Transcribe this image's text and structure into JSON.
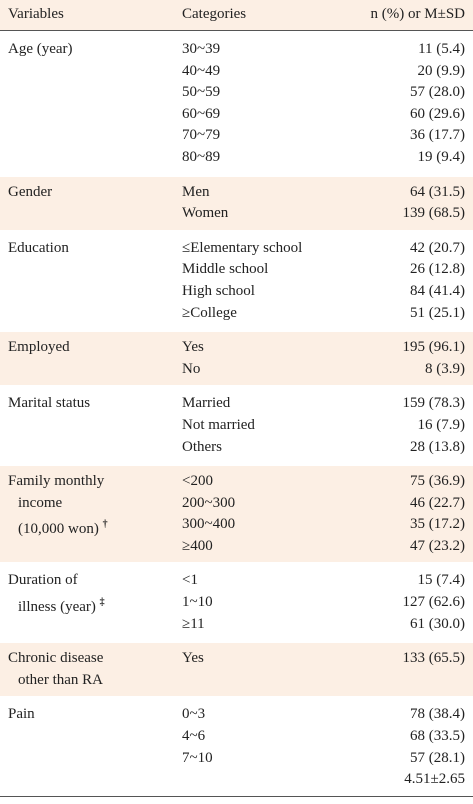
{
  "header": {
    "variables": "Variables",
    "categories": "Categories",
    "values": "n (%) or M±SD"
  },
  "groups": [
    {
      "variable": [
        "Age (year)"
      ],
      "categories": [
        "30~39",
        "40~49",
        "50~59",
        "60~69",
        "70~79",
        "80~89"
      ],
      "values": [
        "11 (5.4)",
        "20 (9.9)",
        "57 (28.0)",
        "60 (29.6)",
        "36 (17.7)",
        "19 (9.4)"
      ]
    },
    {
      "variable": [
        "Gender"
      ],
      "categories": [
        "Men",
        "Women"
      ],
      "values": [
        "64 (31.5)",
        "139 (68.5)"
      ]
    },
    {
      "variable": [
        "Education"
      ],
      "categories": [
        "≤Elementary school",
        "Middle school",
        "High school",
        "≥College"
      ],
      "values": [
        "42 (20.7)",
        "26 (12.8)",
        "84 (41.4)",
        "51 (25.1)"
      ]
    },
    {
      "variable": [
        "Employed"
      ],
      "categories": [
        "Yes",
        "No"
      ],
      "values": [
        "195 (96.1)",
        "8 (3.9)"
      ]
    },
    {
      "variable": [
        "Marital status"
      ],
      "categories": [
        "Married",
        "Not married",
        "Others"
      ],
      "values": [
        "159 (78.3)",
        "16 (7.9)",
        "28 (13.8)"
      ]
    },
    {
      "variable": [
        "Family monthly",
        "income",
        "(10,000 won)"
      ],
      "note": "†",
      "categories": [
        "<200",
        "200~300",
        "300~400",
        "≥400"
      ],
      "values": [
        "75 (36.9)",
        "46 (22.7)",
        "35 (17.2)",
        "47 (23.2)"
      ]
    },
    {
      "variable": [
        "Duration of",
        "illness (year)"
      ],
      "note": "‡",
      "categories": [
        "<1",
        "1~10",
        "≥11"
      ],
      "values": [
        "15 (7.4)",
        "127 (62.6)",
        "61 (30.0)"
      ]
    },
    {
      "variable": [
        "Chronic disease",
        "other than RA"
      ],
      "categories": [
        "Yes"
      ],
      "values": [
        "133 (65.5)"
      ]
    },
    {
      "variable": [
        "Pain"
      ],
      "categories": [
        "0~3",
        "4~6",
        "7~10"
      ],
      "values": [
        "78 (38.4)",
        "68 (33.5)",
        "57 (28.1)",
        "4.51±2.65"
      ]
    }
  ]
}
